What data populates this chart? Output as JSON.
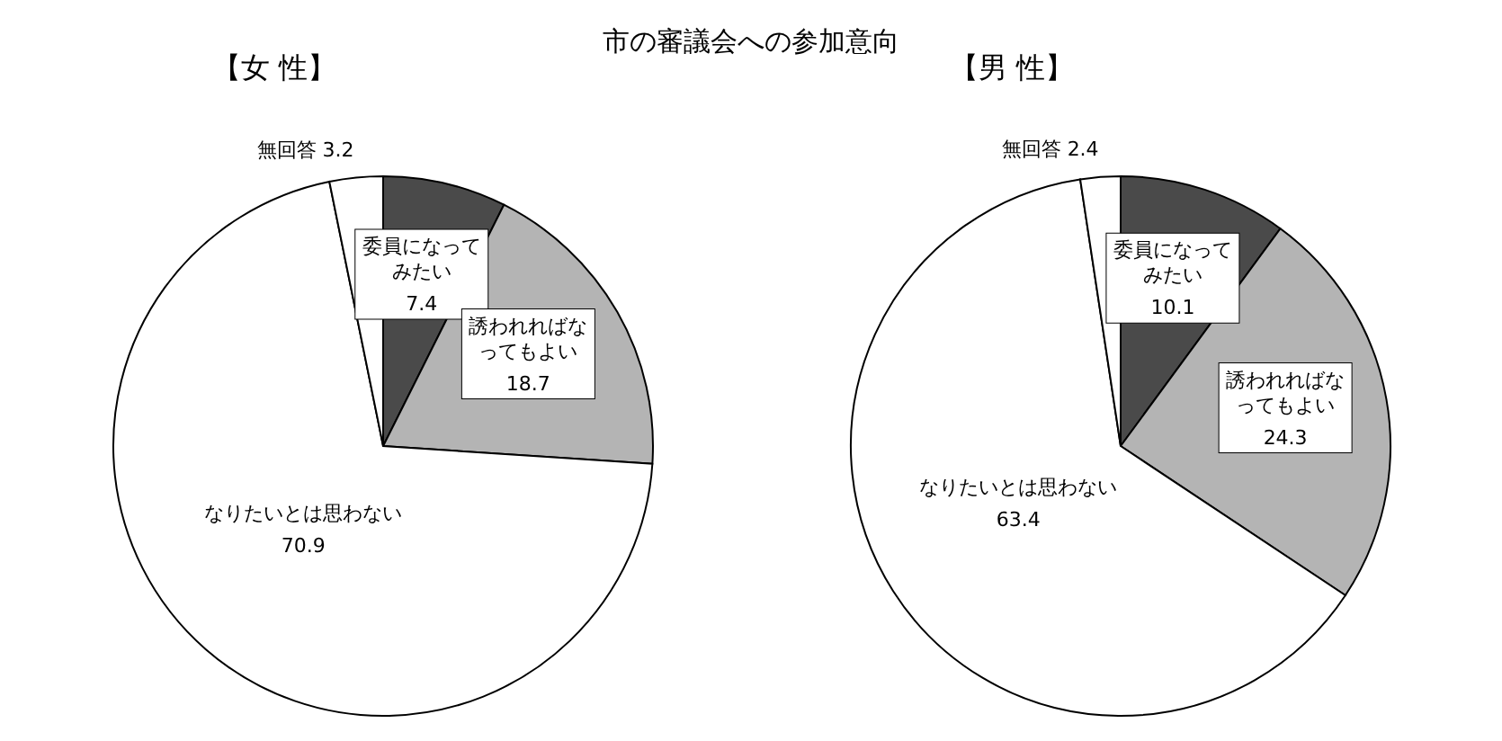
{
  "chart_data": [
    {
      "type": "pie",
      "title": "市の審議会への参加意向",
      "subtitle": "【女 性】",
      "categories": [
        "委員になってみたい",
        "誘われればなってもよい",
        "なりたいとは思わない",
        "無回答"
      ],
      "values": [
        7.4,
        18.7,
        70.9,
        3.2
      ],
      "colors": [
        "#4a4a4a",
        "#b4b4b4",
        "#ffffff",
        "#ffffff"
      ],
      "data_labels": true,
      "legend": false
    },
    {
      "type": "pie",
      "subtitle": "【男 性】",
      "categories": [
        "委員になってみたい",
        "誘われればなってもよい",
        "なりたいとは思わない",
        "無回答"
      ],
      "values": [
        10.1,
        24.3,
        63.4,
        2.4
      ],
      "colors": [
        "#4a4a4a",
        "#b4b4b4",
        "#ffffff",
        "#ffffff"
      ],
      "data_labels": true,
      "legend": false
    }
  ]
}
